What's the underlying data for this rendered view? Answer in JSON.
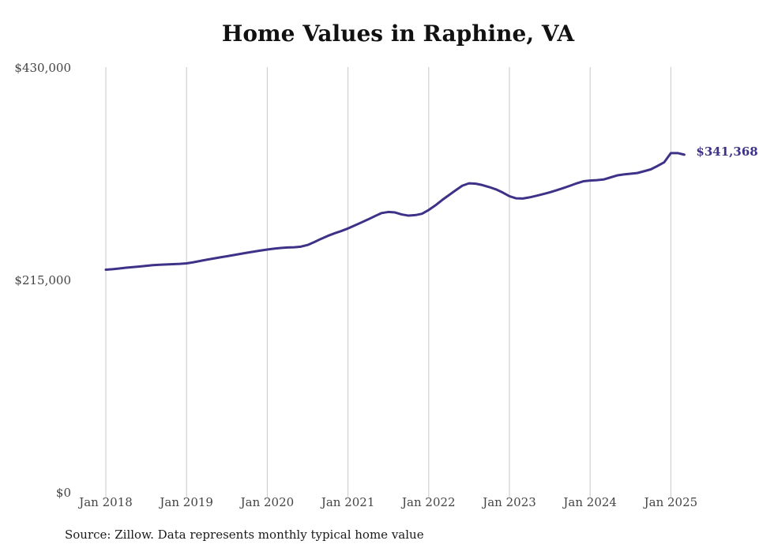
{
  "page": {
    "title": "Home Values in Raphine, VA",
    "source": "Source: Zillow. Data represents monthly typical home value"
  },
  "colors": {
    "line": "#3d3287",
    "grid": "#c8c8c8",
    "tick_text": "#444444",
    "end_label": "#3d3287"
  },
  "chart_data": {
    "type": "line",
    "title": "Home Values in Raphine, VA",
    "xlabel": "",
    "ylabel": "",
    "ylim": [
      0,
      430000
    ],
    "y_ticks": [
      0,
      215000,
      430000
    ],
    "y_tick_labels": [
      "$0",
      "$215,000",
      "$430,000"
    ],
    "x_ticks": [
      "2018-01",
      "2019-01",
      "2020-01",
      "2021-01",
      "2022-01",
      "2023-01",
      "2024-01",
      "2025-01"
    ],
    "x_tick_labels": [
      "Jan 2018",
      "Jan 2019",
      "Jan 2020",
      "Jan 2021",
      "Jan 2022",
      "Jan 2023",
      "Jan 2024",
      "Jan 2025"
    ],
    "grid": "vertical",
    "end_label": "$341,368",
    "series": [
      {
        "x": [
          "2018-01",
          "2018-02",
          "2018-03",
          "2018-04",
          "2018-05",
          "2018-06",
          "2018-07",
          "2018-08",
          "2018-09",
          "2018-10",
          "2018-11",
          "2018-12",
          "2019-01",
          "2019-02",
          "2019-03",
          "2019-04",
          "2019-05",
          "2019-06",
          "2019-07",
          "2019-08",
          "2019-09",
          "2019-10",
          "2019-11",
          "2019-12",
          "2020-01",
          "2020-02",
          "2020-03",
          "2020-04",
          "2020-05",
          "2020-06",
          "2020-07",
          "2020-08",
          "2020-09",
          "2020-10",
          "2020-11",
          "2020-12",
          "2021-01",
          "2021-02",
          "2021-03",
          "2021-04",
          "2021-05",
          "2021-06",
          "2021-07",
          "2021-08",
          "2021-09",
          "2021-10",
          "2021-11",
          "2021-12",
          "2022-01",
          "2022-02",
          "2022-03",
          "2022-04",
          "2022-05",
          "2022-06",
          "2022-07",
          "2022-08",
          "2022-09",
          "2022-10",
          "2022-11",
          "2022-12",
          "2023-01",
          "2023-02",
          "2023-03",
          "2023-04",
          "2023-05",
          "2023-06",
          "2023-07",
          "2023-08",
          "2023-09",
          "2023-10",
          "2023-11",
          "2023-12",
          "2024-01",
          "2024-02",
          "2024-03",
          "2024-04",
          "2024-05",
          "2024-06",
          "2024-07",
          "2024-08",
          "2024-09",
          "2024-10",
          "2024-11",
          "2024-12",
          "2025-01",
          "2025-02",
          "2025-03"
        ],
        "values": [
          225000,
          225500,
          226200,
          227000,
          227600,
          228200,
          228900,
          229600,
          230000,
          230300,
          230600,
          230900,
          231400,
          232500,
          233800,
          235100,
          236300,
          237500,
          238600,
          239800,
          241000,
          242200,
          243300,
          244400,
          245400,
          246300,
          247000,
          247500,
          247700,
          248300,
          250000,
          253000,
          256200,
          259200,
          261800,
          264100,
          266700,
          269700,
          272800,
          275900,
          279200,
          282300,
          283400,
          282900,
          280900,
          279700,
          280200,
          281600,
          285400,
          290100,
          295500,
          300400,
          305300,
          310000,
          312400,
          312000,
          310600,
          308600,
          306300,
          303100,
          299400,
          297200,
          297000,
          298200,
          299800,
          301500,
          303300,
          305400,
          307600,
          309900,
          312400,
          314500,
          315200,
          315600,
          316300,
          318300,
          320400,
          321400,
          322100,
          322800,
          324600,
          326500,
          329900,
          333600,
          343000,
          343000,
          341368
        ]
      }
    ]
  }
}
